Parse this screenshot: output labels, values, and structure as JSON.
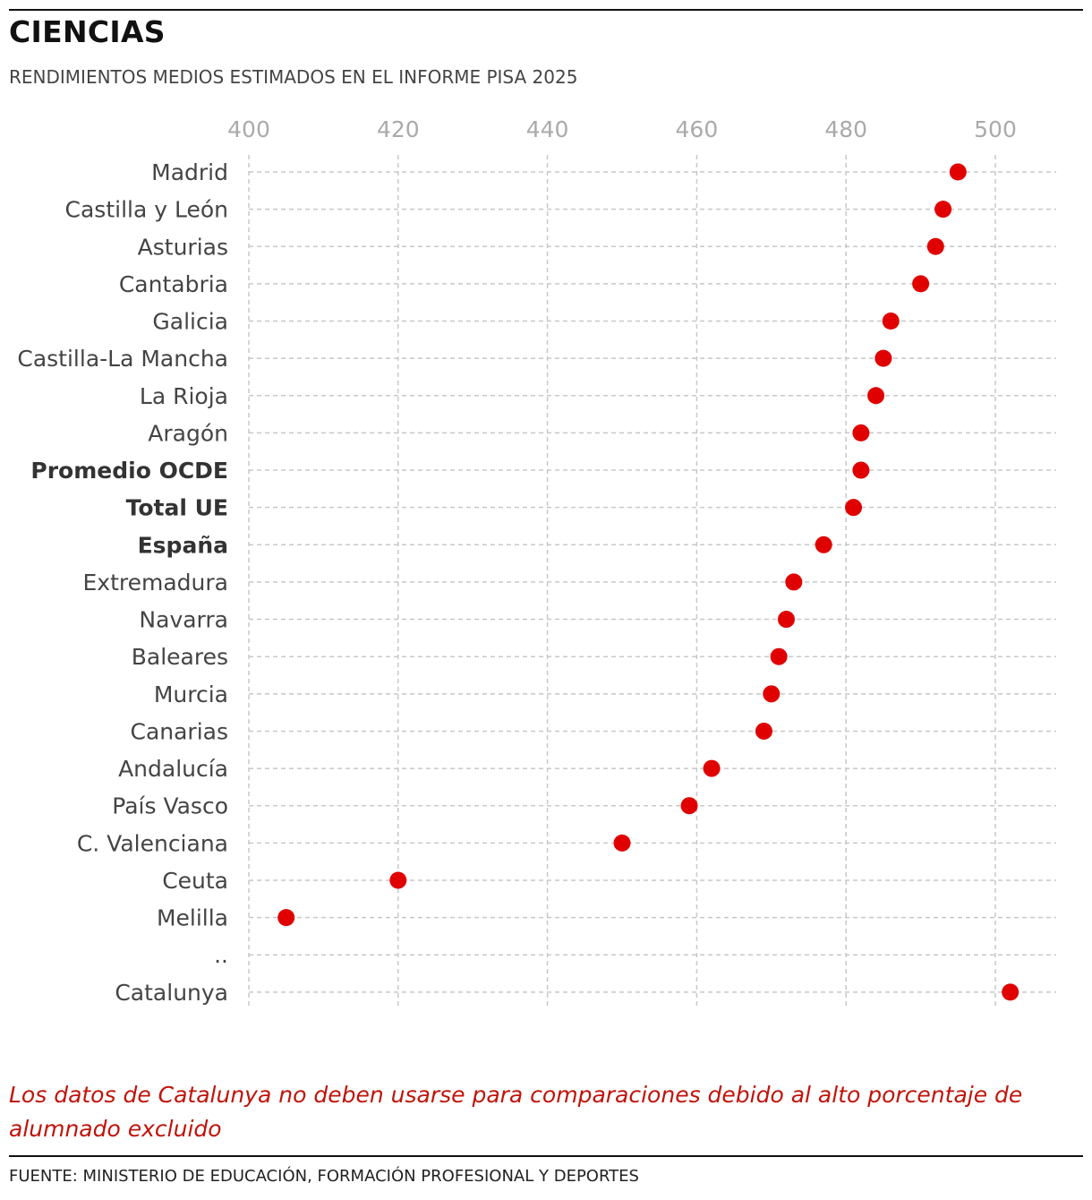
{
  "header": {
    "title": "CIENCIAS",
    "subtitle": "RENDIMIENTOS MEDIOS ESTIMADOS EN EL INFORME PISA 2025"
  },
  "footer": {
    "note": "Los datos de Catalunya no deben usarse para comparaciones debido al alto porcentaje de alumnado excluido",
    "source": "FUENTE: MINISTERIO DE EDUCACIÓN, FORMACIÓN PROFESIONAL Y DEPORTES"
  },
  "colors": {
    "dot": "#e00000",
    "note": "#c0130a",
    "grid": "#c8c8c8",
    "tick_label": "#aaaaaa"
  },
  "chart_data": {
    "type": "scatter",
    "orientation": "horizontal-dot",
    "xlim": [
      400,
      510
    ],
    "ticks": [
      400,
      420,
      440,
      460,
      480,
      500
    ],
    "grid": true,
    "x_axis_position": "top",
    "categories": [
      {
        "label": "Madrid",
        "value": 495,
        "bold": false
      },
      {
        "label": "Castilla y León",
        "value": 493,
        "bold": false
      },
      {
        "label": "Asturias",
        "value": 492,
        "bold": false
      },
      {
        "label": "Cantabria",
        "value": 490,
        "bold": false
      },
      {
        "label": "Galicia",
        "value": 486,
        "bold": false
      },
      {
        "label": "Castilla-La Mancha",
        "value": 485,
        "bold": false
      },
      {
        "label": "La Rioja",
        "value": 484,
        "bold": false
      },
      {
        "label": "Aragón",
        "value": 482,
        "bold": false
      },
      {
        "label": "Promedio OCDE",
        "value": 482,
        "bold": true
      },
      {
        "label": "Total UE",
        "value": 481,
        "bold": true
      },
      {
        "label": "España",
        "value": 477,
        "bold": true
      },
      {
        "label": "Extremadura",
        "value": 473,
        "bold": false
      },
      {
        "label": "Navarra",
        "value": 472,
        "bold": false
      },
      {
        "label": "Baleares",
        "value": 471,
        "bold": false
      },
      {
        "label": "Murcia",
        "value": 470,
        "bold": false
      },
      {
        "label": "Canarias",
        "value": 469,
        "bold": false
      },
      {
        "label": "Andalucía",
        "value": 462,
        "bold": false
      },
      {
        "label": "País Vasco",
        "value": 459,
        "bold": false
      },
      {
        "label": "C. Valenciana",
        "value": 450,
        "bold": false
      },
      {
        "label": "Ceuta",
        "value": 420,
        "bold": false
      },
      {
        "label": "Melilla",
        "value": 405,
        "bold": false
      },
      {
        "label": "..",
        "value": null,
        "bold": false
      },
      {
        "label": "Catalunya",
        "value": 502,
        "bold": false
      }
    ]
  }
}
